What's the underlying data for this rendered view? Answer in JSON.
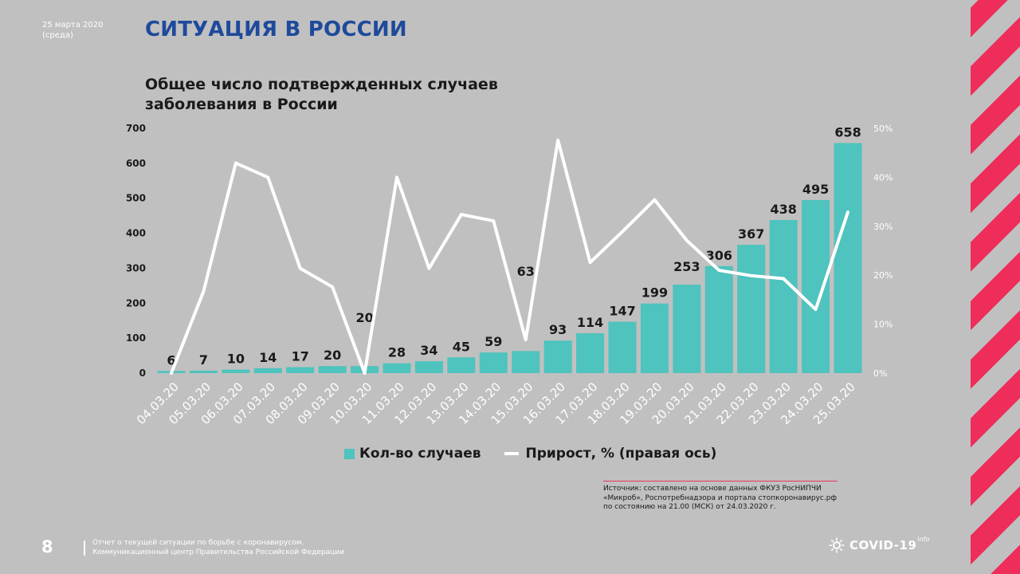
{
  "header": {
    "date_line1": "25 марта 2020",
    "date_line2": "(среда)",
    "title": "СИТУАЦИЯ В РОССИИ"
  },
  "chart_data": {
    "type": "bar",
    "title": "Общее число подтвержденных случаев заболевания в России",
    "categories": [
      "04.03.20",
      "05.03.20",
      "06.03.20",
      "07.03.20",
      "08.03.20",
      "09.03.20",
      "10.03.20",
      "11.03.20",
      "12.03.20",
      "13.03.20",
      "14.03.20",
      "15.03.20",
      "16.03.20",
      "17.03.20",
      "18.03.20",
      "19.03.20",
      "20.03.20",
      "21.03.20",
      "22.03.20",
      "23.03.20",
      "24.03.20",
      "25.03.20"
    ],
    "series": [
      {
        "name": "Кол-во случаев",
        "type": "bar",
        "axis": "left",
        "color": "#4fc3bd",
        "values": [
          6,
          7,
          10,
          14,
          17,
          20,
          20,
          28,
          34,
          45,
          59,
          63,
          93,
          114,
          147,
          199,
          253,
          306,
          367,
          438,
          495,
          658
        ],
        "labels": [
          "6",
          "7",
          "10",
          "14",
          "17",
          "20",
          "20",
          "28",
          "34",
          "45",
          "59",
          "63",
          "93",
          "114",
          "147",
          "199",
          "253",
          "306",
          "367",
          "438",
          "495",
          "658"
        ]
      },
      {
        "name": "Прирост, % (правая ось)",
        "type": "line",
        "axis": "right",
        "color": "#ffffff",
        "values": [
          0,
          16.7,
          42.9,
          40,
          21.4,
          17.6,
          0,
          40,
          21.4,
          32.4,
          31.1,
          6.8,
          47.6,
          22.6,
          28.9,
          35.4,
          27.1,
          21,
          19.9,
          19.3,
          13,
          32.9
        ]
      }
    ],
    "ylim": [
      0,
      700
    ],
    "yticks": [
      "0",
      "100",
      "200",
      "300",
      "400",
      "500",
      "600",
      "700"
    ],
    "ylim_right": [
      0,
      50
    ],
    "yticks_right": [
      "0%",
      "10%",
      "20%",
      "30%",
      "40%",
      "50%"
    ],
    "grid": false,
    "legend": "bottom"
  },
  "source": {
    "line1": "Источник: составлено на основе данных ФКУЗ РосНИПЧИ",
    "line2": "«Микроб», Роспотребнадзора и портала стопкоронавирус.рф",
    "line3": "по состоянию на 21.00 (МСК) от 24.03.2020 г."
  },
  "footer": {
    "page_number": "8",
    "line1": "Отчет о текущей ситуации по борьбе с коронавирусом.",
    "line2": "Коммуникационный центр Правительства Российской Федерации",
    "brand": "COVID-19",
    "brand_sup": "info"
  },
  "colors": {
    "title": "#1e4a9c",
    "accent": "#ee2d5a",
    "bar": "#4fc3bd",
    "background": "#c0c0c0"
  }
}
